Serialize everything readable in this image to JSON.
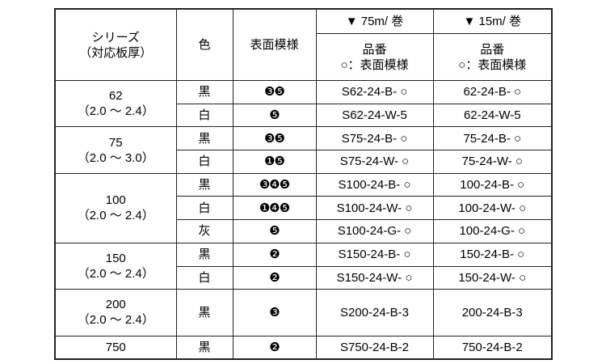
{
  "header": {
    "series_line1": "シリーズ",
    "series_line2": "（対応板厚）",
    "color": "色",
    "pattern": "表面模様",
    "col75": "▼ 75m/ 巻",
    "col15": "▼ 15m/ 巻",
    "part_no": "品番",
    "part_no_note": "○：表面模様"
  },
  "groups": [
    {
      "series": "62",
      "range": "（2.0 ～ 2.4）",
      "rows": [
        {
          "color": "黒",
          "pattern": "❸❺",
          "p75": "S62-24-B- ○",
          "p15": "62-24-B- ○"
        },
        {
          "color": "白",
          "pattern": "❺",
          "p75": "S62-24-W-5",
          "p15": "62-24-W-5"
        }
      ]
    },
    {
      "series": "75",
      "range": "（2.0 ～ 3.0）",
      "rows": [
        {
          "color": "黒",
          "pattern": "❸❺",
          "p75": "S75-24-B- ○",
          "p15": "75-24-B- ○"
        },
        {
          "color": "白",
          "pattern": "❶❺",
          "p75": "S75-24-W- ○",
          "p15": "75-24-W- ○"
        }
      ]
    },
    {
      "series": "100",
      "range": "（2.0 ～ 2.4）",
      "rows": [
        {
          "color": "黒",
          "pattern": "❸❹❺",
          "p75": "S100-24-B- ○",
          "p15": "100-24-B- ○"
        },
        {
          "color": "白",
          "pattern": "❶❹❺",
          "p75": "S100-24-W- ○",
          "p15": "100-24-W- ○"
        },
        {
          "color": "灰",
          "pattern": "❺",
          "p75": "S100-24-G- ○",
          "p15": "100-24-G- ○"
        }
      ]
    },
    {
      "series": "150",
      "range": "（2.0 ～ 2.4）",
      "rows": [
        {
          "color": "黒",
          "pattern": "❷",
          "p75": "S150-24-B- ○",
          "p15": "150-24-B- ○"
        },
        {
          "color": "白",
          "pattern": "❷",
          "p75": "S150-24-W- ○",
          "p15": "150-24-W- ○"
        }
      ]
    },
    {
      "series": "200",
      "range": "（2.0 ～ 2.4）",
      "rows": [
        {
          "color": "黒",
          "pattern": "❸",
          "p75": "S200-24-B-3",
          "p15": "200-24-B-3"
        }
      ]
    },
    {
      "series": "750",
      "range": "",
      "rows": [
        {
          "color": "黒",
          "pattern": "❷",
          "p75": "S750-24-B-2",
          "p15": "750-24-B-2"
        }
      ]
    }
  ]
}
